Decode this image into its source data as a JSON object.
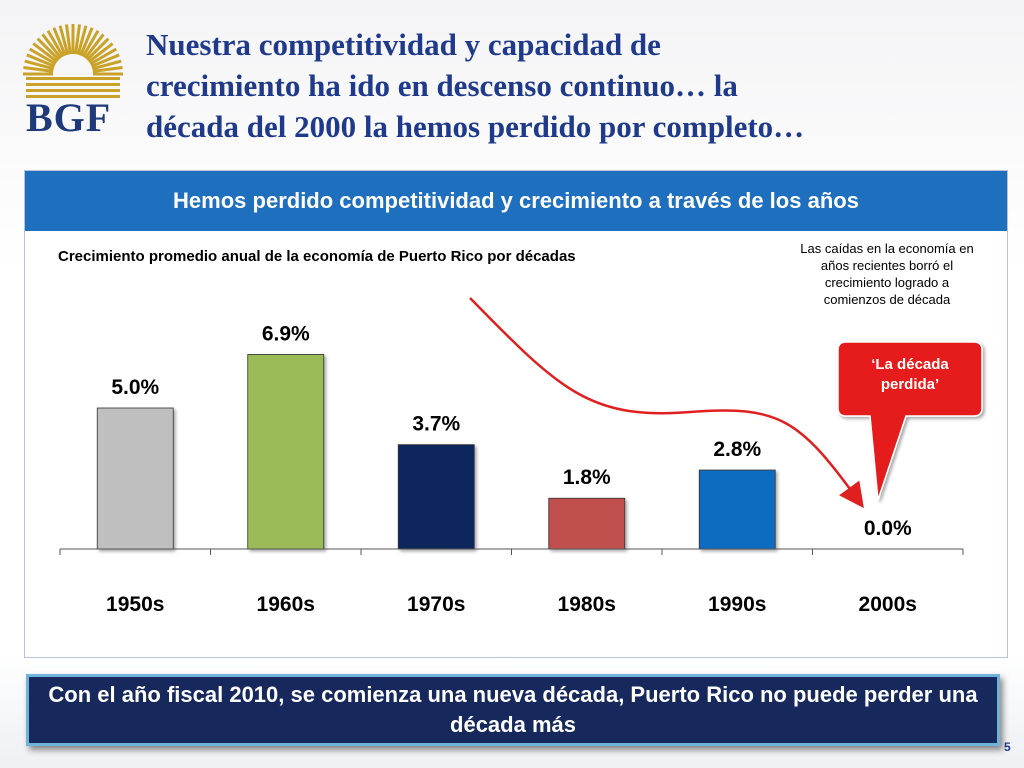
{
  "header": {
    "logo_text": "BGF",
    "title_lines": [
      "Nuestra competitividad y capacidad de",
      "crecimiento ha ido en descenso continuo… la",
      "década del 2000 la hemos perdido por completo…"
    ]
  },
  "panel": {
    "heading": "Hemos perdido competitividad y crecimiento a través de los años"
  },
  "note_text": "Las caídas en la economía en años recientes borró el crecimiento logrado a comienzos de década",
  "callout": {
    "line1": "‘La década",
    "line2": "perdida’"
  },
  "chart_data": {
    "type": "bar",
    "title": "Crecimiento promedio anual de la economía de Puerto Rico por décadas",
    "categories": [
      "1950s",
      "1960s",
      "1970s",
      "1980s",
      "1990s",
      "2000s"
    ],
    "values": [
      5.0,
      6.9,
      3.7,
      1.8,
      2.8,
      0.0
    ],
    "value_labels": [
      "5.0%",
      "6.9%",
      "3.7%",
      "1.8%",
      "2.8%",
      "0.0%"
    ],
    "bar_colors": [
      "#bfbfbf",
      "#9bbb59",
      "#10255c",
      "#c0504d",
      "#0f6cc0",
      "#ffffff"
    ],
    "xlabel": "",
    "ylabel": "",
    "ylim": [
      0,
      7
    ],
    "grid": false,
    "legend": "none"
  },
  "colors": {
    "title": "#1f3a8a",
    "panel_header": "#1f6fbf",
    "footer_bg": "#16285c",
    "callout": "#e61d1d",
    "arrow": "#e02020"
  },
  "footer": {
    "text": "Con el año fiscal 2010, se comienza una nueva década, Puerto Rico no puede perder una década más"
  },
  "page_number": "5"
}
